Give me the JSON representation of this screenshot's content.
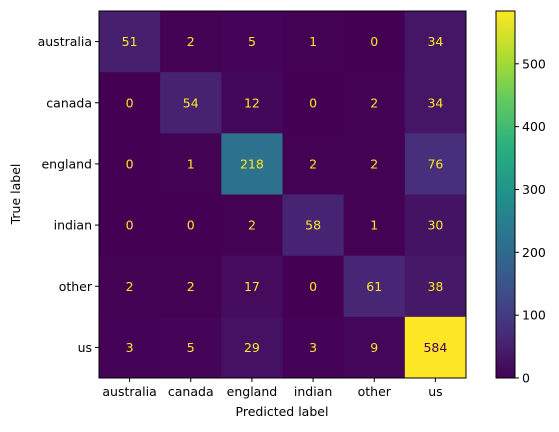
{
  "chart_data": {
    "type": "heatmap",
    "title": "",
    "xlabel": "Predicted label",
    "ylabel": "True label",
    "x_categories": [
      "australia",
      "canada",
      "england",
      "indian",
      "other",
      "us"
    ],
    "y_categories": [
      "australia",
      "canada",
      "england",
      "indian",
      "other",
      "us"
    ],
    "values": [
      [
        51,
        2,
        5,
        1,
        0,
        34
      ],
      [
        0,
        54,
        12,
        0,
        2,
        34
      ],
      [
        0,
        1,
        218,
        2,
        2,
        76
      ],
      [
        0,
        0,
        2,
        58,
        1,
        30
      ],
      [
        2,
        2,
        17,
        0,
        61,
        38
      ],
      [
        3,
        5,
        29,
        3,
        9,
        584
      ]
    ],
    "colormap": "viridis",
    "color_range": [
      0,
      584
    ],
    "colorbar_ticks": [
      0,
      100,
      200,
      300,
      400,
      500
    ],
    "grid": false,
    "legend": "colorbar-right"
  }
}
